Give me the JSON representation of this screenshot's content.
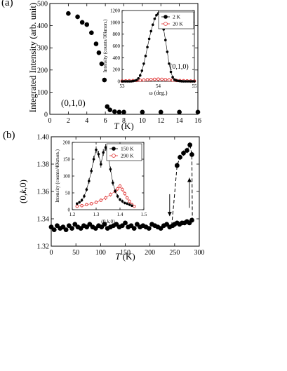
{
  "panels": {
    "a": {
      "label": "(a)"
    },
    "b": {
      "label": "(b)"
    }
  },
  "chart_data": [
    {
      "id": "a-main",
      "type": "scatter",
      "panel": "(a)",
      "xlabel": "T (K)",
      "ylabel": "Integrated Intensity (arb. unit)",
      "xlim": [
        0,
        16
      ],
      "ylim": [
        0,
        500
      ],
      "xticks": [
        0,
        2,
        4,
        6,
        8,
        10,
        12,
        14,
        16
      ],
      "yticks": [
        0,
        100,
        200,
        300,
        400,
        500
      ],
      "annotations": [
        "(0,1,0)"
      ],
      "color": "#000000",
      "series": [
        {
          "x": [
            2.0,
            3.0,
            3.5,
            4.0,
            4.5,
            5.0,
            5.3,
            5.6,
            5.9,
            6.2,
            6.5,
            7.0,
            7.5,
            8.0,
            10.0,
            12.0,
            14.0,
            16.0
          ],
          "y": [
            455,
            440,
            415,
            405,
            368,
            318,
            278,
            228,
            155,
            35,
            20,
            12,
            10,
            10,
            10,
            10,
            10,
            10
          ],
          "error": [
            10,
            10,
            10,
            10,
            10,
            10,
            10,
            10,
            10,
            5,
            5,
            5,
            5,
            5,
            5,
            5,
            5,
            5
          ]
        }
      ]
    },
    {
      "id": "a-inset",
      "type": "line",
      "panel": "(a) inset",
      "xlabel": "ω (deg.)",
      "ylabel": "Intensity (counts/10kmon.)",
      "xlim": [
        53,
        55
      ],
      "ylim": [
        0,
        1200
      ],
      "xticks": [
        53,
        54,
        55
      ],
      "yticks": [
        0,
        200,
        400,
        600,
        800,
        1000,
        1200
      ],
      "annotations": [
        "(0,1,0)"
      ],
      "legend": "top-right",
      "series": [
        {
          "name": "2 K",
          "color": "#000000",
          "marker": "filled-circle",
          "x": [
            53.0,
            53.05,
            53.1,
            53.15,
            53.2,
            53.25,
            53.3,
            53.35,
            53.4,
            53.45,
            53.5,
            53.55,
            53.6,
            53.65,
            53.7,
            53.75,
            53.8,
            53.85,
            53.9,
            53.95,
            54.0,
            54.05,
            54.1,
            54.15,
            54.2,
            54.25,
            54.3,
            54.35,
            54.4,
            54.45,
            54.5,
            54.55,
            54.6,
            54.65,
            54.7,
            54.75,
            54.8,
            54.85,
            54.9,
            54.95,
            55.0
          ],
          "y": [
            0,
            0,
            0,
            0,
            0,
            0,
            5,
            10,
            20,
            50,
            100,
            180,
            300,
            430,
            580,
            720,
            850,
            960,
            1060,
            1120,
            1150,
            1100,
            1010,
            880,
            700,
            500,
            300,
            160,
            70,
            30,
            15,
            8,
            5,
            2,
            0,
            0,
            0,
            0,
            0,
            0,
            0
          ]
        },
        {
          "name": "20 K",
          "color": "#e03030",
          "marker": "open-circle",
          "x": [
            53.0,
            53.1,
            53.2,
            53.3,
            53.4,
            53.5,
            53.6,
            53.7,
            53.8,
            53.9,
            54.0,
            54.1,
            54.2,
            54.3,
            54.4,
            54.5,
            54.6,
            54.7,
            54.8,
            54.9,
            55.0
          ],
          "y": [
            5,
            8,
            10,
            12,
            15,
            18,
            22,
            28,
            32,
            35,
            38,
            35,
            30,
            25,
            20,
            15,
            12,
            10,
            8,
            6,
            5
          ]
        }
      ]
    },
    {
      "id": "b-main",
      "type": "scatter",
      "panel": "(b)",
      "xlabel": "T (K)",
      "ylabel": "(0,k,0)",
      "xlim": [
        0,
        300
      ],
      "ylim": [
        1.32,
        1.4
      ],
      "xticks": [
        0,
        50,
        100,
        150,
        200,
        250,
        300
      ],
      "yticks": [
        1.32,
        1.34,
        1.36,
        1.38,
        1.4
      ],
      "color": "#000000",
      "series": [
        {
          "x": [
            0,
            6,
            12,
            18,
            24,
            30,
            36,
            42,
            48,
            54,
            60,
            66,
            72,
            78,
            84,
            90,
            96,
            102,
            108,
            114,
            120,
            126,
            132,
            138,
            144,
            150,
            156,
            162,
            168,
            174,
            180,
            186,
            192,
            198,
            204,
            210,
            216,
            222,
            228,
            234,
            240,
            246
          ],
          "y": [
            1.334,
            1.332,
            1.335,
            1.333,
            1.334,
            1.332,
            1.335,
            1.333,
            1.336,
            1.334,
            1.333,
            1.335,
            1.334,
            1.336,
            1.334,
            1.333,
            1.335,
            1.334,
            1.336,
            1.333,
            1.334,
            1.335,
            1.336,
            1.334,
            1.335,
            1.337,
            1.334,
            1.335,
            1.333,
            1.336,
            1.334,
            1.335,
            1.334,
            1.333,
            1.336,
            1.335,
            1.334,
            1.333,
            1.335,
            1.336,
            1.334,
            1.335
          ],
          "error": [
            0.001,
            0.001,
            0.001,
            0.001,
            0.001,
            0.001,
            0.001,
            0.001,
            0.001,
            0.001,
            0.001,
            0.001,
            0.001,
            0.001,
            0.001,
            0.001,
            0.001,
            0.001,
            0.001,
            0.001,
            0.001,
            0.001,
            0.001,
            0.001,
            0.001,
            0.001,
            0.001,
            0.001,
            0.001,
            0.001,
            0.001,
            0.001,
            0.001,
            0.001,
            0.001,
            0.001,
            0.001,
            0.001,
            0.001,
            0.001,
            0.001,
            0.001
          ]
        },
        {
          "x": [
            250,
            255,
            260,
            265,
            270,
            275,
            280,
            285
          ],
          "y": [
            1.336,
            1.337,
            1.336,
            1.337,
            1.337,
            1.338,
            1.337,
            1.339
          ],
          "error": [
            0.001,
            0.001,
            0.001,
            0.001,
            0.001,
            0.001,
            0.001,
            0.001
          ]
        },
        {
          "x": [
            255,
            261,
            268,
            275,
            281,
            285
          ],
          "y": [
            1.379,
            1.385,
            1.388,
            1.39,
            1.394,
            1.387
          ],
          "error": [
            0.002,
            0.002,
            0.002,
            0.002,
            0.002,
            0.002
          ]
        }
      ],
      "dashed_guides": [
        {
          "x": [
            244,
            248,
            255,
            261,
            268,
            275,
            281
          ],
          "y": [
            1.335,
            1.35,
            1.379,
            1.385,
            1.388,
            1.39,
            1.394
          ]
        },
        {
          "x": [
            281,
            285,
            286
          ],
          "y": [
            1.394,
            1.387,
            1.339
          ]
        }
      ],
      "arrows": [
        {
          "direction": "down",
          "from": [
            240,
            1.358
          ],
          "to": [
            240,
            1.342
          ]
        },
        {
          "direction": "up",
          "from": [
            280,
            1.348
          ],
          "to": [
            280,
            1.37
          ]
        }
      ]
    },
    {
      "id": "b-inset",
      "type": "line",
      "panel": "(b) inset",
      "xlabel": "(0,k,0)",
      "ylabel": "Intensity (counts/40kmon.)",
      "xlim": [
        1.2,
        1.5
      ],
      "ylim": [
        0,
        200
      ],
      "xticks": [
        1.2,
        1.3,
        1.4,
        1.5
      ],
      "yticks": [
        0,
        50,
        100,
        150,
        200
      ],
      "legend": "top-right",
      "series": [
        {
          "name": "150 K",
          "color": "#000000",
          "marker": "filled-circle",
          "x": [
            1.22,
            1.23,
            1.24,
            1.25,
            1.26,
            1.27,
            1.28,
            1.29,
            1.3,
            1.31,
            1.32,
            1.33,
            1.34,
            1.35,
            1.36,
            1.37,
            1.38,
            1.39,
            1.4,
            1.41,
            1.42,
            1.43,
            1.44,
            1.45
          ],
          "y": [
            18,
            22,
            28,
            40,
            60,
            85,
            115,
            150,
            178,
            165,
            135,
            170,
            185,
            160,
            120,
            80,
            55,
            40,
            30,
            25,
            20,
            18,
            15,
            12
          ],
          "error": [
            4,
            4,
            5,
            6,
            6,
            8,
            8,
            10,
            10,
            10,
            10,
            10,
            10,
            10,
            8,
            8,
            6,
            6,
            5,
            5,
            4,
            4,
            4,
            4
          ]
        },
        {
          "name": "290 K",
          "color": "#e03030",
          "marker": "open-circle",
          "x": [
            1.22,
            1.24,
            1.26,
            1.28,
            1.3,
            1.32,
            1.34,
            1.36,
            1.38,
            1.39,
            1.4,
            1.41,
            1.42,
            1.43,
            1.44,
            1.45,
            1.46
          ],
          "y": [
            10,
            12,
            15,
            18,
            22,
            28,
            35,
            45,
            55,
            62,
            70,
            60,
            48,
            35,
            25,
            15,
            10
          ],
          "error": [
            4,
            4,
            4,
            5,
            5,
            5,
            6,
            6,
            6,
            6,
            6,
            6,
            6,
            5,
            5,
            4,
            4
          ]
        }
      ]
    }
  ]
}
